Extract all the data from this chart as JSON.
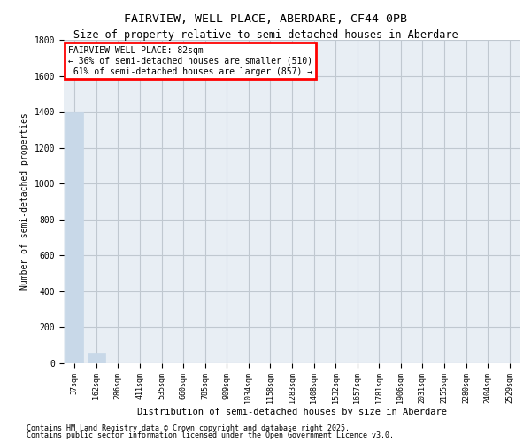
{
  "title_line1": "FAIRVIEW, WELL PLACE, ABERDARE, CF44 0PB",
  "title_line2": "Size of property relative to semi-detached houses in Aberdare",
  "xlabel": "Distribution of semi-detached houses by size in Aberdare",
  "ylabel": "Number of semi-detached properties",
  "categories": [
    "37sqm",
    "162sqm",
    "286sqm",
    "411sqm",
    "535sqm",
    "660sqm",
    "785sqm",
    "909sqm",
    "1034sqm",
    "1158sqm",
    "1283sqm",
    "1408sqm",
    "1532sqm",
    "1657sqm",
    "1781sqm",
    "1906sqm",
    "2031sqm",
    "2155sqm",
    "2280sqm",
    "2404sqm",
    "2529sqm"
  ],
  "values": [
    1400,
    60,
    0,
    0,
    0,
    0,
    0,
    0,
    0,
    0,
    0,
    0,
    0,
    0,
    0,
    0,
    0,
    0,
    0,
    0,
    0
  ],
  "bar_color": "#c8d8e8",
  "highlight_bar_index": 0,
  "highlight_color": "#c8d8e8",
  "annotation_text": "FAIRVIEW WELL PLACE: 82sqm\n← 36% of semi-detached houses are smaller (510)\n 61% of semi-detached houses are larger (857) →",
  "annotation_box_color": "#ff0000",
  "ylim": [
    0,
    1800
  ],
  "yticks": [
    0,
    200,
    400,
    600,
    800,
    1000,
    1200,
    1400,
    1600,
    1800
  ],
  "grid_color": "#c0c8d0",
  "bg_color": "#e8eef4",
  "footer_line1": "Contains HM Land Registry data © Crown copyright and database right 2025.",
  "footer_line2": "Contains public sector information licensed under the Open Government Licence v3.0."
}
